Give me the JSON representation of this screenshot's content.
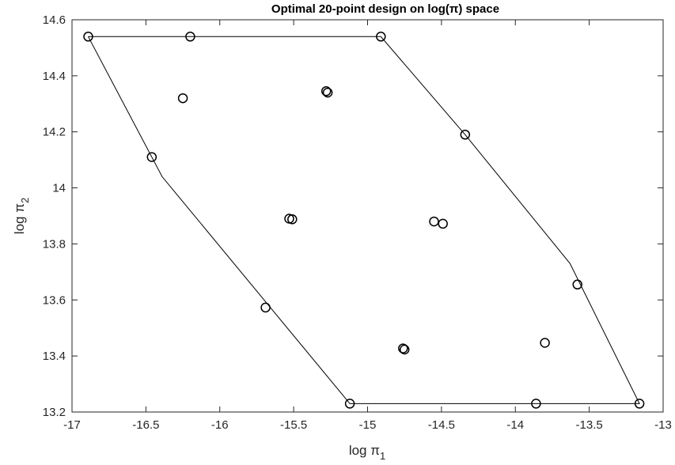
{
  "chart_data": {
    "type": "scatter",
    "title": "Optimal 20-point design on log(π) space",
    "xlabel": {
      "text": "log π",
      "sub": "1"
    },
    "ylabel": {
      "text": "log π",
      "sub": "2"
    },
    "xlim": [
      -17,
      -13
    ],
    "ylim": [
      13.2,
      14.6
    ],
    "xticks": [
      -17,
      -16.5,
      -16,
      -15.5,
      -15,
      -14.5,
      -14,
      -13.5,
      -13
    ],
    "xtick_labels": [
      "-17",
      "-16.5",
      "-16",
      "-15.5",
      "-15",
      "-14.5",
      "-14",
      "-13.5",
      "-13"
    ],
    "yticks": [
      13.2,
      13.4,
      13.6,
      13.8,
      14,
      14.2,
      14.4,
      14.6
    ],
    "ytick_labels": [
      "13.2",
      "13.4",
      "13.6",
      "13.8",
      "14",
      "14.2",
      "14.4",
      "14.6"
    ],
    "grid": false,
    "boundary": {
      "x": [
        -16.89,
        -14.91,
        -14.34,
        -13.63,
        -13.16,
        -15.12,
        -16.39,
        -16.89
      ],
      "y": [
        14.54,
        14.54,
        14.19,
        13.73,
        13.23,
        13.23,
        14.04,
        14.54
      ]
    },
    "points": {
      "x": [
        -16.89,
        -16.2,
        -14.91,
        -16.25,
        -15.28,
        -15.27,
        -14.34,
        -16.46,
        -15.53,
        -15.51,
        -14.55,
        -14.49,
        -13.58,
        -15.69,
        -14.76,
        -14.75,
        -13.8,
        -15.12,
        -13.86,
        -13.16
      ],
      "y": [
        14.54,
        14.54,
        14.54,
        14.32,
        14.345,
        14.34,
        14.19,
        14.11,
        13.89,
        13.888,
        13.88,
        13.872,
        13.655,
        13.573,
        13.427,
        13.423,
        13.447,
        13.23,
        13.23,
        13.23
      ]
    },
    "colors": {
      "line": "#000000",
      "marker": "#000000",
      "axis": "#262626"
    }
  }
}
